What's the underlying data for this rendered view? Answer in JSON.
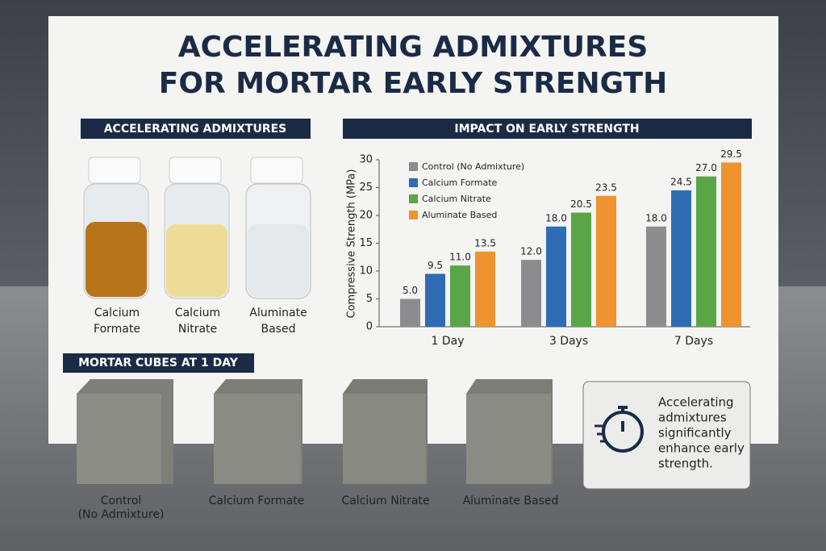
{
  "title": [
    "ACCELERATING ADMIXTURES",
    "FOR MORTAR EARLY STRENGTH"
  ],
  "left_header": "ACCELERATING ADMIXTURES",
  "jars": [
    {
      "label": [
        "Calcium",
        "Formate"
      ]
    },
    {
      "label": [
        "Calcium",
        "Nitrate"
      ]
    },
    {
      "label": [
        "Aluminate",
        "Based"
      ]
    }
  ],
  "cubes_header": "MORTAR CUBES AT 1 DAY",
  "cubes": [
    {
      "label": [
        "Control",
        "(No Admixture)"
      ]
    },
    {
      "label": [
        "Calcium Formate"
      ]
    },
    {
      "label": [
        "Calcium Nitrate"
      ]
    },
    {
      "label": [
        "Aluminate Based"
      ]
    }
  ],
  "note": [
    "Accelerating",
    "admixtures",
    "significantly",
    "enhance early",
    "strength."
  ],
  "chart_data": {
    "type": "bar",
    "title": "IMPACT ON EARLY STRENGTH",
    "y_label": "Compressive Strength (MPa)",
    "categories": [
      "1 Day",
      "3 Days",
      "7 Days"
    ],
    "series": [
      {
        "name": "Control (No Admixture)",
        "color": "#8c8c8e",
        "values": [
          5,
          12,
          18
        ],
        "value_labels": [
          "5.0",
          "12.0",
          "18.0"
        ]
      },
      {
        "name": "Calcium Formate",
        "color": "#2f6cb3",
        "values": [
          9.5,
          18,
          24.5
        ],
        "value_labels": [
          "9.5",
          "18.0",
          "24.5"
        ]
      },
      {
        "name": "Calcium Nitrate",
        "color": "#5aa646",
        "values": [
          11,
          20.5,
          27
        ],
        "value_labels": [
          "11.0",
          "20.5",
          "27.0"
        ]
      },
      {
        "name": "Aluminate Based",
        "color": "#ee9330",
        "values": [
          13.5,
          23.5,
          29.5
        ],
        "value_labels": [
          "13.5",
          "23.5",
          "29.5"
        ]
      }
    ],
    "ylim": [
      0,
      30
    ],
    "yticks": [
      0,
      5,
      10,
      15,
      20,
      25,
      30
    ],
    "legend": "top-left"
  }
}
